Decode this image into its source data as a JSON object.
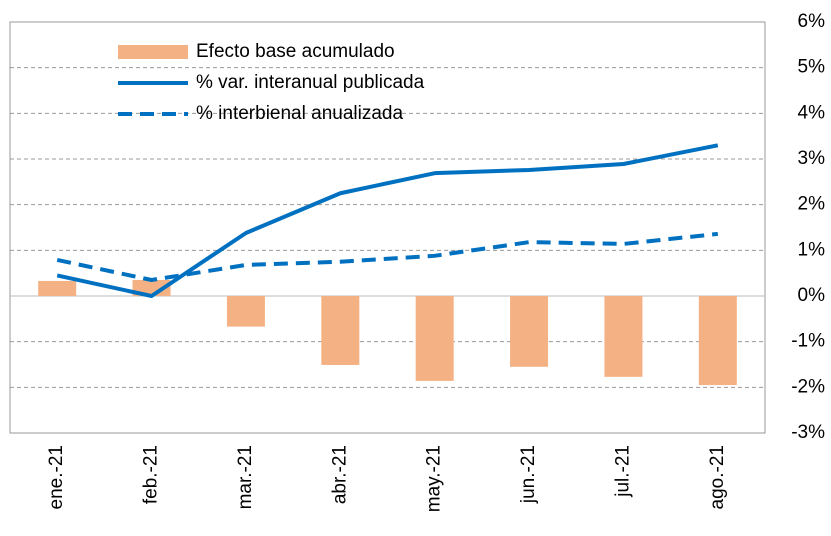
{
  "chart_data": {
    "type": "combo",
    "categories": [
      "ene.-21",
      "feb.-21",
      "mar.-21",
      "abr.-21",
      "may.-21",
      "jun.-21",
      "jul.-21",
      "ago.-21"
    ],
    "series": [
      {
        "name": "Efecto base acumulado",
        "type": "bar",
        "color": "#f4b183",
        "values": [
          0.33,
          0.35,
          -0.67,
          -1.51,
          -1.86,
          -1.55,
          -1.77,
          -1.95
        ]
      },
      {
        "name": "% var. interanual publicada",
        "type": "line",
        "dashed": false,
        "color": "#0070c0",
        "values": [
          0.45,
          0.0,
          1.38,
          2.25,
          2.69,
          2.76,
          2.89,
          3.3
        ]
      },
      {
        "name": "% interbienal anualizada",
        "type": "line",
        "dashed": true,
        "color": "#0070c0",
        "values": [
          0.79,
          0.35,
          0.68,
          0.75,
          0.88,
          1.18,
          1.14,
          1.36
        ]
      }
    ],
    "ylim": [
      -3,
      6
    ],
    "yticks": [
      {
        "value": -3,
        "label": "-3%"
      },
      {
        "value": -2,
        "label": "-2%"
      },
      {
        "value": -1,
        "label": "-1%"
      },
      {
        "value": 0,
        "label": "0%"
      },
      {
        "value": 1,
        "label": "1%"
      },
      {
        "value": 2,
        "label": "2%"
      },
      {
        "value": 3,
        "label": "3%"
      },
      {
        "value": 4,
        "label": "4%"
      },
      {
        "value": 5,
        "label": "5%"
      },
      {
        "value": 6,
        "label": "6%"
      }
    ],
    "grid": true
  }
}
